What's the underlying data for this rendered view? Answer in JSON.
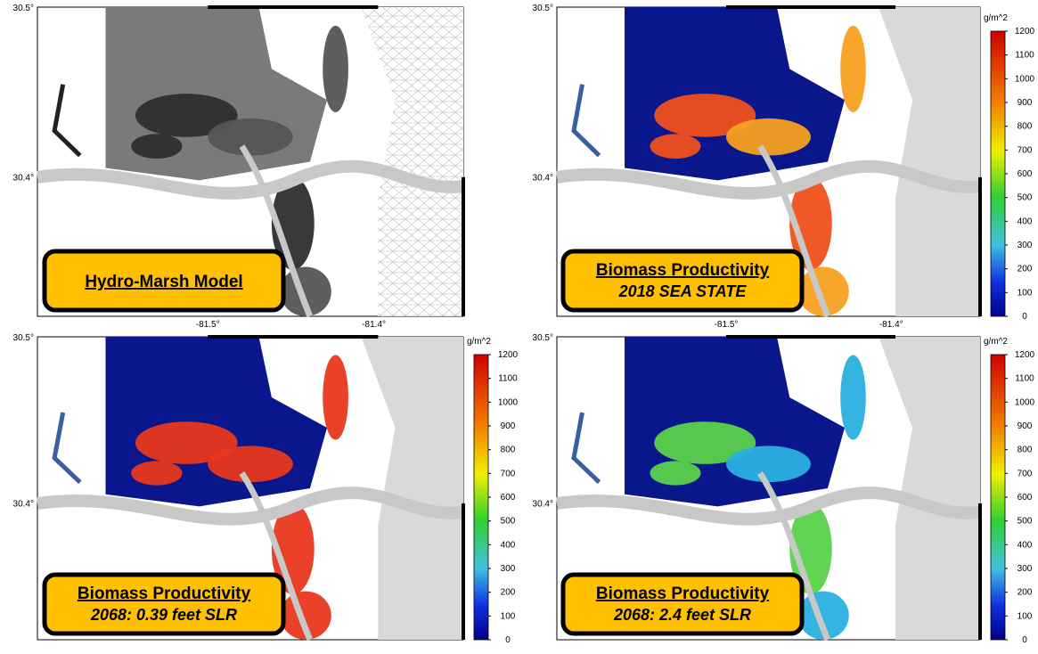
{
  "panels": [
    {
      "label": [
        "Hydro-Marsh Model"
      ],
      "lat_ticks": [
        "30.5°",
        "30.4°"
      ],
      "lon_ticks": [
        "-81.5°",
        "-81.4°"
      ]
    },
    {
      "label": [
        "Biomass Productivity",
        "2018 SEA STATE"
      ],
      "lat_ticks": [
        "30.5°",
        "30.4°"
      ],
      "lon_ticks": [
        "-81.5°",
        "-81.4°"
      ],
      "colorbar": {
        "unit": "g/m^2",
        "lim": [
          0,
          1200
        ],
        "ticks": [
          0,
          100,
          200,
          300,
          400,
          500,
          600,
          700,
          800,
          900,
          1000,
          1100,
          1200
        ]
      }
    },
    {
      "label": [
        "Biomass Productivity",
        "2068: 0.39 feet SLR"
      ],
      "lat_ticks": [
        "30.5°",
        "30.4°"
      ],
      "colorbar": {
        "unit": "g/m^2",
        "lim": [
          0,
          1200
        ],
        "ticks": [
          0,
          100,
          200,
          300,
          400,
          500,
          600,
          700,
          800,
          900,
          1000,
          1100,
          1200
        ]
      }
    },
    {
      "label": [
        "Biomass Productivity",
        "2068: 2.4 feet SLR"
      ],
      "lat_ticks": [
        "30.5°",
        "30.4°"
      ],
      "colorbar": {
        "unit": "g/m^2",
        "lim": [
          0,
          1200
        ],
        "ticks": [
          0,
          100,
          200,
          300,
          400,
          500,
          600,
          700,
          800,
          900,
          1000,
          1100,
          1200
        ]
      }
    }
  ]
}
